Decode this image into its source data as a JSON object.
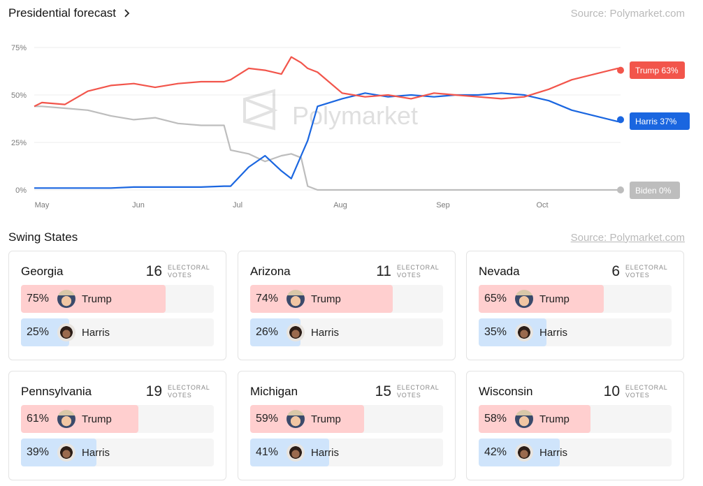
{
  "forecast": {
    "title": "Presidential forecast",
    "source": "Source: Polymarket.com",
    "watermark": "Polymarket"
  },
  "chart_data": {
    "type": "line",
    "y_ticks": [
      "75%",
      "50%",
      "25%",
      "0%"
    ],
    "x_ticks": [
      "May",
      "Jun",
      "Jul",
      "Aug",
      "Sep",
      "Oct"
    ],
    "ylim": [
      0,
      75
    ],
    "grid": true,
    "legend": "right end labels",
    "x": [
      "Apr 25",
      "May 1",
      "May 8",
      "May 15",
      "May 22",
      "May 29",
      "Jun 5",
      "Jun 12",
      "Jun 19",
      "Jun 26",
      "Jun 28",
      "Jul 3",
      "Jul 8",
      "Jul 13",
      "Jul 16",
      "Jul 19",
      "Jul 21",
      "Jul 24",
      "Aug 1",
      "Aug 8",
      "Aug 15",
      "Aug 22",
      "Aug 29",
      "Sep 5",
      "Sep 12",
      "Sep 19",
      "Sep 26",
      "Oct 3",
      "Oct 10",
      "Oct 17",
      "Oct 24",
      "Oct 26"
    ],
    "series": [
      {
        "name": "Trump",
        "end_label": "Trump 63%",
        "color": "#f2554b",
        "values": [
          44,
          46,
          45,
          52,
          55,
          56,
          54,
          56,
          57,
          57,
          58,
          64,
          63,
          61,
          70,
          67,
          64,
          62,
          51,
          49,
          50,
          48,
          51,
          50,
          49,
          48,
          49,
          53,
          58,
          61,
          64,
          63
        ]
      },
      {
        "name": "Harris",
        "end_label": "Harris 37%",
        "color": "#1a66e0",
        "values": [
          1,
          1,
          1,
          1,
          1,
          1.5,
          1.5,
          1.5,
          1.5,
          2,
          2,
          12,
          18,
          10,
          6,
          18,
          26,
          44,
          48,
          51,
          49,
          50,
          49,
          50,
          50,
          51,
          50,
          47,
          42,
          39,
          36,
          37
        ]
      },
      {
        "name": "Biden",
        "end_label": "Biden 0%",
        "color": "#bdbdbd",
        "values": [
          44,
          44,
          43,
          42,
          39,
          37,
          38,
          35,
          34,
          34,
          21,
          19,
          15,
          18,
          19,
          17,
          2,
          0,
          0,
          0,
          0,
          0,
          0,
          0,
          0,
          0,
          0,
          0,
          0,
          0,
          0,
          0
        ]
      }
    ]
  },
  "swing": {
    "title": "Swing States",
    "source": "Source: Polymarket.com",
    "ev_label": "ELECTORAL VOTES",
    "states": [
      {
        "name": "Georgia",
        "ev": "16",
        "trump_pct_text": "75%",
        "trump_pct": 75,
        "harris_pct_text": "25%",
        "harris_pct": 25,
        "trump": "Trump",
        "harris": "Harris"
      },
      {
        "name": "Arizona",
        "ev": "11",
        "trump_pct_text": "74%",
        "trump_pct": 74,
        "harris_pct_text": "26%",
        "harris_pct": 26,
        "trump": "Trump",
        "harris": "Harris"
      },
      {
        "name": "Nevada",
        "ev": "6",
        "trump_pct_text": "65%",
        "trump_pct": 65,
        "harris_pct_text": "35%",
        "harris_pct": 35,
        "trump": "Trump",
        "harris": "Harris"
      },
      {
        "name": "Pennsylvania",
        "ev": "19",
        "trump_pct_text": "61%",
        "trump_pct": 61,
        "harris_pct_text": "39%",
        "harris_pct": 39,
        "trump": "Trump",
        "harris": "Harris"
      },
      {
        "name": "Michigan",
        "ev": "15",
        "trump_pct_text": "59%",
        "trump_pct": 59,
        "harris_pct_text": "41%",
        "harris_pct": 41,
        "trump": "Trump",
        "harris": "Harris"
      },
      {
        "name": "Wisconsin",
        "ev": "10",
        "trump_pct_text": "58%",
        "trump_pct": 58,
        "harris_pct_text": "42%",
        "harris_pct": 42,
        "trump": "Trump",
        "harris": "Harris"
      }
    ]
  }
}
